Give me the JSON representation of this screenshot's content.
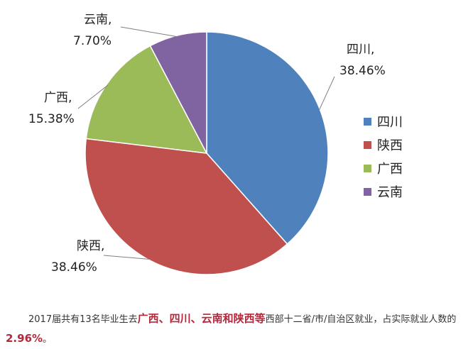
{
  "colors": {
    "sichuan": "#4f81bd",
    "shaanxi": "#c0504d",
    "guangxi": "#9bbb59",
    "yunnan": "#8064a2",
    "caption_highlight": "#b3283a"
  },
  "chart_data": {
    "type": "pie",
    "slices": [
      {
        "name": "四川",
        "value": 38.46,
        "label_name": "四川,",
        "label_value": "38.46%",
        "color": "#4f81bd"
      },
      {
        "name": "陕西",
        "value": 38.46,
        "label_name": "陕西,",
        "label_value": "38.46%",
        "color": "#c0504d"
      },
      {
        "name": "广西",
        "value": 15.38,
        "label_name": "广西,",
        "label_value": "15.38%",
        "color": "#9bbb59"
      },
      {
        "name": "云南",
        "value": 7.7,
        "label_name": "云南,",
        "label_value": "7.70%",
        "color": "#8064a2"
      }
    ],
    "legend": [
      "四川",
      "陕西",
      "广西",
      "云南"
    ],
    "legend_position": "right",
    "start": "top, clockwise"
  },
  "caption": {
    "part1": "2017届共有13名毕业生去",
    "highlight1": "广西、四川、云南和陕西等",
    "part2": "西部十二省/市/自治区就业，占实际就业人数的",
    "highlight2": "2.96%",
    "part3": "。"
  }
}
